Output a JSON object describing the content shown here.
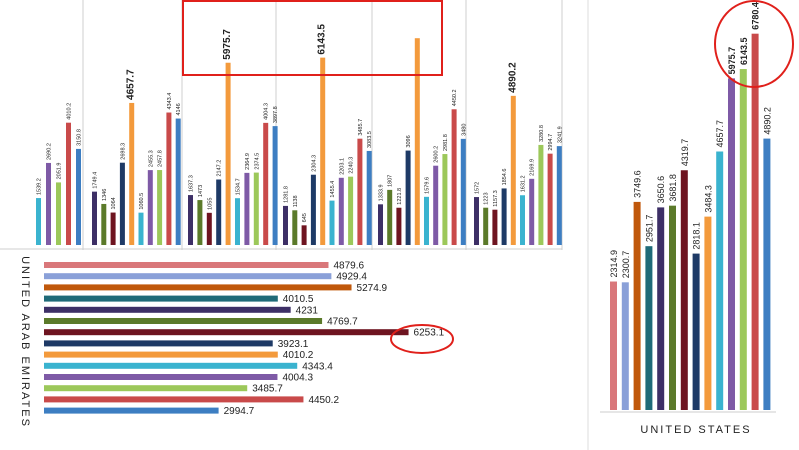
{
  "colors": {
    "salmon": "#d9777a",
    "lavender": "#8aa0d8",
    "orange_brown": "#c0580b",
    "teal": "#1f6a78",
    "indigo": "#3d2f66",
    "olive": "#5b7a2a",
    "maroon": "#6e1420",
    "navy": "#1e3a66",
    "orange": "#f39a3c",
    "cyan": "#3ab3cf",
    "purple": "#7e5aa6",
    "lime": "#9cc85a",
    "red": "#c94a4a",
    "blue": "#3d7ec2",
    "highlight": "#e0201b",
    "axis": "#bbbbbb"
  },
  "chart_data": [
    {
      "type": "bar",
      "orientation": "vertical",
      "groups": [
        {
          "labels": [
            "1539.2",
            "2690.2",
            "2051.9",
            "4010.2",
            "3150.8"
          ],
          "values": [
            1539.2,
            2690.2,
            2051.9,
            4010.2,
            3150.8
          ],
          "colors": [
            "cyan",
            "purple",
            "lime",
            "red",
            "blue"
          ]
        },
        {
          "labels": [
            "1749.4",
            "1346",
            "1064",
            "2698.3",
            "4657.7",
            "1060.5",
            "2455.3",
            "2457.8",
            "4343.4",
            "4146"
          ],
          "values": [
            1749.4,
            1346,
            1064,
            2698.3,
            4657.7,
            1060.5,
            2455.3,
            2457.8,
            4343.4,
            4146
          ],
          "colors": [
            "indigo",
            "olive",
            "maroon",
            "navy",
            "orange",
            "cyan",
            "purple",
            "lime",
            "red",
            "blue"
          ]
        },
        {
          "labels": [
            "1637.3",
            "1473",
            "1055",
            "2147.2",
            "5975.7",
            "1534.7",
            "2364.9",
            "2374.5",
            "4004.3",
            "3897.8"
          ],
          "values": [
            1637.3,
            1473,
            1055,
            2147.2,
            5975.7,
            1534.7,
            2364.9,
            2374.5,
            4004.3,
            3897.8
          ],
          "colors": [
            "indigo",
            "olive",
            "maroon",
            "navy",
            "orange",
            "cyan",
            "purple",
            "lime",
            "red",
            "blue"
          ]
        },
        {
          "labels": [
            "1281.8",
            "1138",
            "645",
            "2304.3",
            "6143.5",
            "1455.4",
            "2203.1",
            "2240.3",
            "3485.7",
            "3083.5"
          ],
          "values": [
            1281.8,
            1138,
            645,
            2304.3,
            6143.5,
            1455.4,
            2203.1,
            2240.3,
            3485.7,
            3083.5
          ],
          "colors": [
            "indigo",
            "olive",
            "maroon",
            "navy",
            "orange",
            "cyan",
            "purple",
            "lime",
            "red",
            "blue"
          ]
        },
        {
          "labels": [
            "1333.9",
            "1807",
            "1221.8",
            "3096",
            "",
            "1579.6",
            "2600.2",
            "2981.8",
            "4450.2",
            "3480"
          ],
          "values": [
            1333.9,
            1807,
            1221.8,
            3096,
            6780.4,
            1579.6,
            2600.2,
            2981.8,
            4450.2,
            3480
          ],
          "colors": [
            "indigo",
            "olive",
            "maroon",
            "navy",
            "orange",
            "cyan",
            "purple",
            "lime",
            "red",
            "blue"
          ]
        },
        {
          "labels": [
            "1572",
            "1223",
            "1157.3",
            "1854.6",
            "4890.2",
            "1631.2",
            "2169.9",
            "3280.8",
            "2994.7",
            "3241.9"
          ],
          "values": [
            1572,
            1223,
            1157.3,
            1854.6,
            4890.2,
            1631.2,
            2169.9,
            3280.8,
            2994.7,
            3241.9
          ],
          "colors": [
            "indigo",
            "olive",
            "maroon",
            "navy",
            "orange",
            "cyan",
            "purple",
            "lime",
            "red",
            "blue"
          ]
        }
      ],
      "highlighted": [
        "5975.7",
        "6143.5"
      ]
    },
    {
      "type": "bar",
      "orientation": "horizontal",
      "title": "UNITED ARAB EMIRATES",
      "values": [
        4879.6,
        4929.4,
        5274.9,
        4010.5,
        4231,
        4769.7,
        6253.1,
        3923.1,
        4010.2,
        4343.4,
        4004.3,
        3485.7,
        4450.2,
        2994.7
      ],
      "labels": [
        "4879.6",
        "4929.4",
        "5274.9",
        "4010.5",
        "4231",
        "4769.7",
        "6253.1",
        "3923.1",
        "4010.2",
        "4343.4",
        "4004.3",
        "3485.7",
        "4450.2",
        "2994.7"
      ],
      "colors": [
        "salmon",
        "lavender",
        "orange_brown",
        "teal",
        "indigo",
        "olive",
        "maroon",
        "navy",
        "orange",
        "cyan",
        "purple",
        "lime",
        "red",
        "blue"
      ],
      "highlighted": [
        "6253.1"
      ]
    },
    {
      "type": "bar",
      "orientation": "vertical",
      "title": "UNITED STATES",
      "values": [
        2314.9,
        2300.7,
        3749.6,
        2951.7,
        3650.6,
        3681.8,
        4319.7,
        2818.1,
        3484.3,
        4657.7,
        5975.7,
        6143.5,
        6780.4,
        4890.2
      ],
      "labels": [
        "2314.9",
        "2300.7",
        "3749.6",
        "2951.7",
        "3650.6",
        "3681.8",
        "4319.7",
        "2818.1",
        "3484.3",
        "4657.7",
        "5975.7",
        "6143.5",
        "6780.4",
        "4890.2"
      ],
      "colors": [
        "salmon",
        "lavender",
        "orange_brown",
        "teal",
        "indigo",
        "olive",
        "maroon",
        "navy",
        "orange",
        "cyan",
        "purple",
        "lime",
        "red",
        "blue"
      ],
      "highlighted": [
        "5975.7",
        "6143.5",
        "6780.4"
      ]
    }
  ]
}
